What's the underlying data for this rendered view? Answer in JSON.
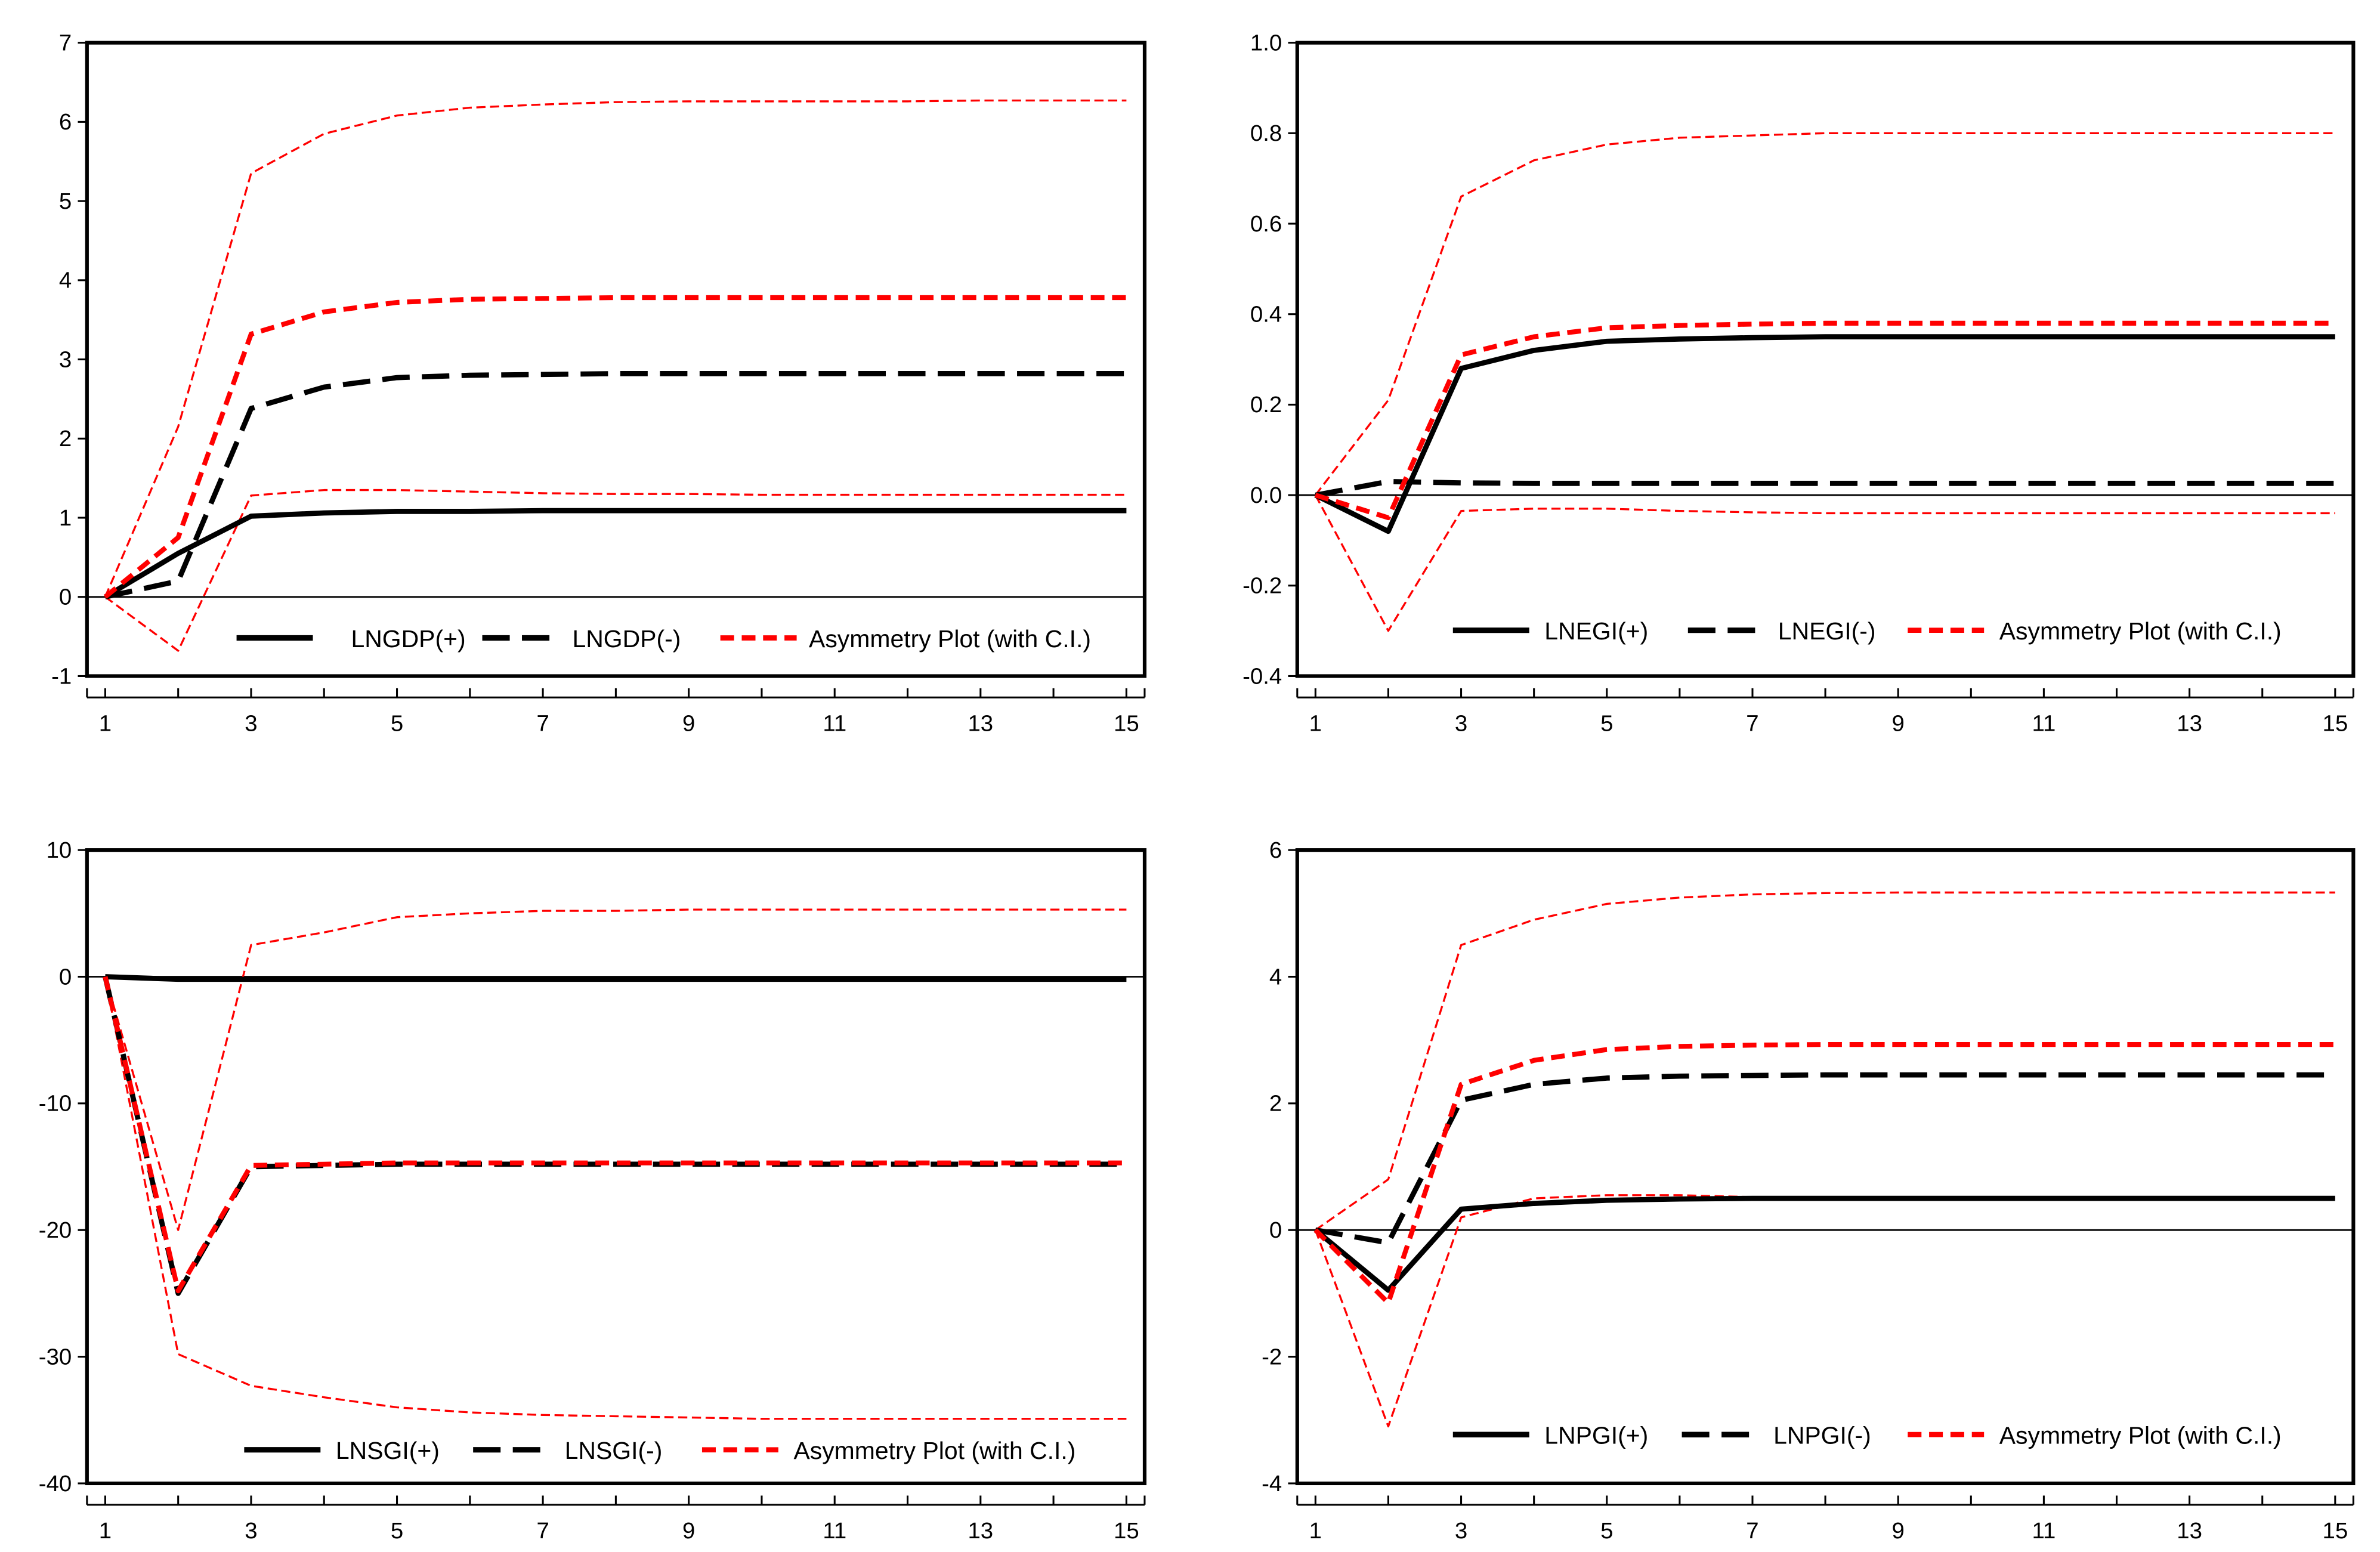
{
  "chart_data": [
    {
      "type": "line",
      "x": [
        1,
        2,
        3,
        4,
        5,
        6,
        7,
        8,
        9,
        10,
        11,
        12,
        13,
        14,
        15
      ],
      "xticks": [
        "1",
        "3",
        "5",
        "7",
        "9",
        "11",
        "13",
        "15"
      ],
      "ylim": [
        -1,
        7
      ],
      "yticks": [
        "-1",
        "0",
        "1",
        "2",
        "3",
        "4",
        "5",
        "6",
        "7"
      ],
      "legend": [
        "LNGDP(+)",
        "LNGDP(-)",
        "Asymmetry Plot (with C.I.)"
      ],
      "series": [
        {
          "name": "LNGDP(+)",
          "values": [
            0,
            0.55,
            1.02,
            1.06,
            1.08,
            1.08,
            1.09,
            1.09,
            1.09,
            1.09,
            1.09,
            1.09,
            1.09,
            1.09,
            1.09
          ]
        },
        {
          "name": "LNGDP(-)",
          "values": [
            0,
            0.2,
            2.38,
            2.65,
            2.77,
            2.8,
            2.81,
            2.82,
            2.82,
            2.82,
            2.82,
            2.82,
            2.82,
            2.82,
            2.82
          ]
        },
        {
          "name": "Asymmetry Plot (with C.I.)",
          "values": [
            0,
            0.75,
            3.32,
            3.6,
            3.72,
            3.76,
            3.77,
            3.78,
            3.78,
            3.78,
            3.78,
            3.78,
            3.78,
            3.78,
            3.78
          ]
        },
        {
          "name": "Asymmetry Plot upper C.I.",
          "values": [
            0,
            2.15,
            5.35,
            5.85,
            6.08,
            6.18,
            6.22,
            6.25,
            6.26,
            6.26,
            6.26,
            6.26,
            6.27,
            6.27,
            6.27
          ]
        },
        {
          "name": "Asymmetry Plot lower C.I.",
          "values": [
            0,
            -0.68,
            1.28,
            1.35,
            1.35,
            1.33,
            1.31,
            1.3,
            1.3,
            1.29,
            1.29,
            1.29,
            1.29,
            1.29,
            1.29
          ]
        }
      ]
    },
    {
      "type": "line",
      "x": [
        1,
        2,
        3,
        4,
        5,
        6,
        7,
        8,
        9,
        10,
        11,
        12,
        13,
        14,
        15
      ],
      "xticks": [
        "1",
        "3",
        "5",
        "7",
        "9",
        "11",
        "13",
        "15"
      ],
      "ylim": [
        -0.4,
        1.0
      ],
      "yticks": [
        "-0.4",
        "-0.2",
        "0.0",
        "0.2",
        "0.4",
        "0.6",
        "0.8",
        "1.0"
      ],
      "legend": [
        "LNEGI(+)",
        "LNEGI(-)",
        "Asymmetry Plot (with C.I.)"
      ],
      "series": [
        {
          "name": "LNEGI(+)",
          "values": [
            0,
            -0.08,
            0.28,
            0.32,
            0.34,
            0.345,
            0.348,
            0.35,
            0.35,
            0.35,
            0.35,
            0.35,
            0.35,
            0.35,
            0.35
          ]
        },
        {
          "name": "LNEGI(-)",
          "values": [
            0,
            0.03,
            0.027,
            0.026,
            0.026,
            0.026,
            0.026,
            0.026,
            0.026,
            0.026,
            0.026,
            0.026,
            0.026,
            0.026,
            0.026
          ]
        },
        {
          "name": "Asymmetry Plot (with C.I.)",
          "values": [
            0,
            -0.05,
            0.31,
            0.35,
            0.37,
            0.375,
            0.378,
            0.38,
            0.38,
            0.38,
            0.38,
            0.38,
            0.38,
            0.38,
            0.38
          ]
        },
        {
          "name": "Asymmetry Plot upper C.I.",
          "values": [
            0,
            0.21,
            0.66,
            0.74,
            0.775,
            0.79,
            0.795,
            0.8,
            0.8,
            0.8,
            0.8,
            0.8,
            0.8,
            0.8,
            0.8
          ]
        },
        {
          "name": "Asymmetry Plot lower C.I.",
          "values": [
            0,
            -0.3,
            -0.035,
            -0.03,
            -0.03,
            -0.035,
            -0.038,
            -0.04,
            -0.04,
            -0.04,
            -0.04,
            -0.04,
            -0.04,
            -0.04,
            -0.04
          ]
        }
      ]
    },
    {
      "type": "line",
      "x": [
        1,
        2,
        3,
        4,
        5,
        6,
        7,
        8,
        9,
        10,
        11,
        12,
        13,
        14,
        15
      ],
      "xticks": [
        "1",
        "3",
        "5",
        "7",
        "9",
        "11",
        "13",
        "15"
      ],
      "ylim": [
        -40,
        10
      ],
      "yticks": [
        "-40",
        "-30",
        "-20",
        "-10",
        "0",
        "10"
      ],
      "legend": [
        "LNSGI(+)",
        "LNSGI(-)",
        "Asymmetry Plot (with C.I.)"
      ],
      "series": [
        {
          "name": "LNSGI(+)",
          "values": [
            0,
            -0.2,
            -0.2,
            -0.2,
            -0.2,
            -0.2,
            -0.2,
            -0.2,
            -0.2,
            -0.2,
            -0.2,
            -0.2,
            -0.2,
            -0.2,
            -0.2
          ]
        },
        {
          "name": "LNSGI(-)",
          "values": [
            0,
            -25,
            -15,
            -14.9,
            -14.8,
            -14.8,
            -14.8,
            -14.8,
            -14.8,
            -14.8,
            -14.8,
            -14.8,
            -14.8,
            -14.8,
            -14.8
          ]
        },
        {
          "name": "Asymmetry Plot (with C.I.)",
          "values": [
            0,
            -24.8,
            -14.9,
            -14.8,
            -14.7,
            -14.7,
            -14.7,
            -14.7,
            -14.7,
            -14.7,
            -14.7,
            -14.7,
            -14.7,
            -14.7,
            -14.7
          ]
        },
        {
          "name": "Asymmetry Plot upper C.I.",
          "values": [
            0,
            -20,
            2.5,
            3.5,
            4.7,
            5,
            5.2,
            5.2,
            5.3,
            5.3,
            5.3,
            5.3,
            5.3,
            5.3,
            5.3
          ]
        },
        {
          "name": "Asymmetry Plot lower C.I.",
          "values": [
            0,
            -29.8,
            -32.3,
            -33.2,
            -34,
            -34.4,
            -34.6,
            -34.7,
            -34.8,
            -34.9,
            -34.9,
            -34.9,
            -34.9,
            -34.9,
            -34.9
          ]
        }
      ]
    },
    {
      "type": "line",
      "x": [
        1,
        2,
        3,
        4,
        5,
        6,
        7,
        8,
        9,
        10,
        11,
        12,
        13,
        14,
        15
      ],
      "xticks": [
        "1",
        "3",
        "5",
        "7",
        "9",
        "11",
        "13",
        "15"
      ],
      "ylim": [
        -4,
        6
      ],
      "yticks": [
        "-4",
        "-2",
        "0",
        "2",
        "4",
        "6"
      ],
      "legend": [
        "LNPGI(+)",
        "LNPGI(-)",
        "Asymmetry Plot (with C.I.)"
      ],
      "series": [
        {
          "name": "LNPGI(+)",
          "values": [
            0,
            -0.95,
            0.33,
            0.42,
            0.47,
            0.49,
            0.5,
            0.5,
            0.5,
            0.5,
            0.5,
            0.5,
            0.5,
            0.5,
            0.5
          ]
        },
        {
          "name": "LNPGI(-)",
          "values": [
            0,
            -0.2,
            2.05,
            2.3,
            2.4,
            2.43,
            2.44,
            2.45,
            2.45,
            2.45,
            2.45,
            2.45,
            2.45,
            2.45,
            2.45
          ]
        },
        {
          "name": "Asymmetry Plot (with C.I.)",
          "values": [
            0,
            -1.15,
            2.3,
            2.68,
            2.85,
            2.9,
            2.92,
            2.93,
            2.93,
            2.93,
            2.93,
            2.93,
            2.93,
            2.93,
            2.93
          ]
        },
        {
          "name": "Asymmetry Plot upper C.I.",
          "values": [
            0,
            0.8,
            4.5,
            4.9,
            5.15,
            5.25,
            5.3,
            5.32,
            5.33,
            5.33,
            5.33,
            5.33,
            5.33,
            5.33,
            5.33
          ]
        },
        {
          "name": "Asymmetry Plot lower C.I.",
          "values": [
            0,
            -3.1,
            0.2,
            0.5,
            0.55,
            0.55,
            0.52,
            0.52,
            0.5,
            0.5,
            0.5,
            0.5,
            0.5,
            0.5,
            0.5
          ]
        }
      ]
    }
  ]
}
